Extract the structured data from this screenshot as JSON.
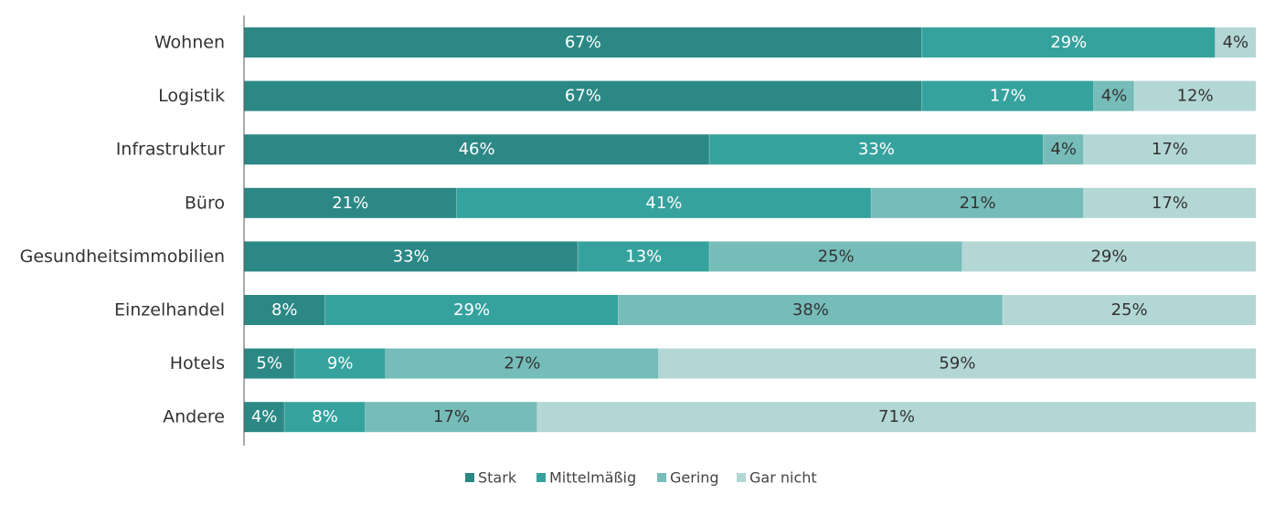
{
  "chart_data": {
    "type": "bar",
    "orientation": "horizontal",
    "stacked": true,
    "normalized_percent": true,
    "categories": [
      "Wohnen",
      "Logistik",
      "Infrastruktur",
      "Büro",
      "Gesundheitsimmobilien",
      "Einzelhandel",
      "Hotels",
      "Andere"
    ],
    "series": [
      {
        "name": "Stark",
        "color": "#2b8885",
        "label_color": "#ffffff",
        "values": [
          67,
          67,
          46,
          21,
          33,
          8,
          5,
          4
        ]
      },
      {
        "name": "Mittelmäßig",
        "color": "#36a29e",
        "label_color": "#ffffff",
        "values": [
          29,
          17,
          33,
          41,
          13,
          29,
          9,
          8
        ]
      },
      {
        "name": "Gering",
        "color": "#76bcb9",
        "label_color": "#333333",
        "values": [
          0,
          4,
          4,
          21,
          25,
          38,
          27,
          17
        ]
      },
      {
        "name": "Gar nicht",
        "color": "#b3d7d5",
        "label_color": "#333333",
        "values": [
          4,
          12,
          17,
          17,
          29,
          25,
          59,
          71
        ]
      }
    ],
    "value_labels": [
      [
        "67%",
        "29%",
        "",
        "4%"
      ],
      [
        "67%",
        "17%",
        "4%",
        "12%"
      ],
      [
        "46%",
        "33%",
        "4%",
        "17%"
      ],
      [
        "21%",
        "41%",
        "21%",
        "17%"
      ],
      [
        "33%",
        "13%",
        "25%",
        "29%"
      ],
      [
        "8%",
        "29%",
        "38%",
        "25%"
      ],
      [
        "5%",
        "9%",
        "27%",
        "59%"
      ],
      [
        "4%",
        "8%",
        "17%",
        "71%"
      ]
    ],
    "xlim": [
      0,
      100
    ],
    "grid": false,
    "legend_position": "bottom-center",
    "title": "",
    "xlabel": "",
    "ylabel": ""
  }
}
